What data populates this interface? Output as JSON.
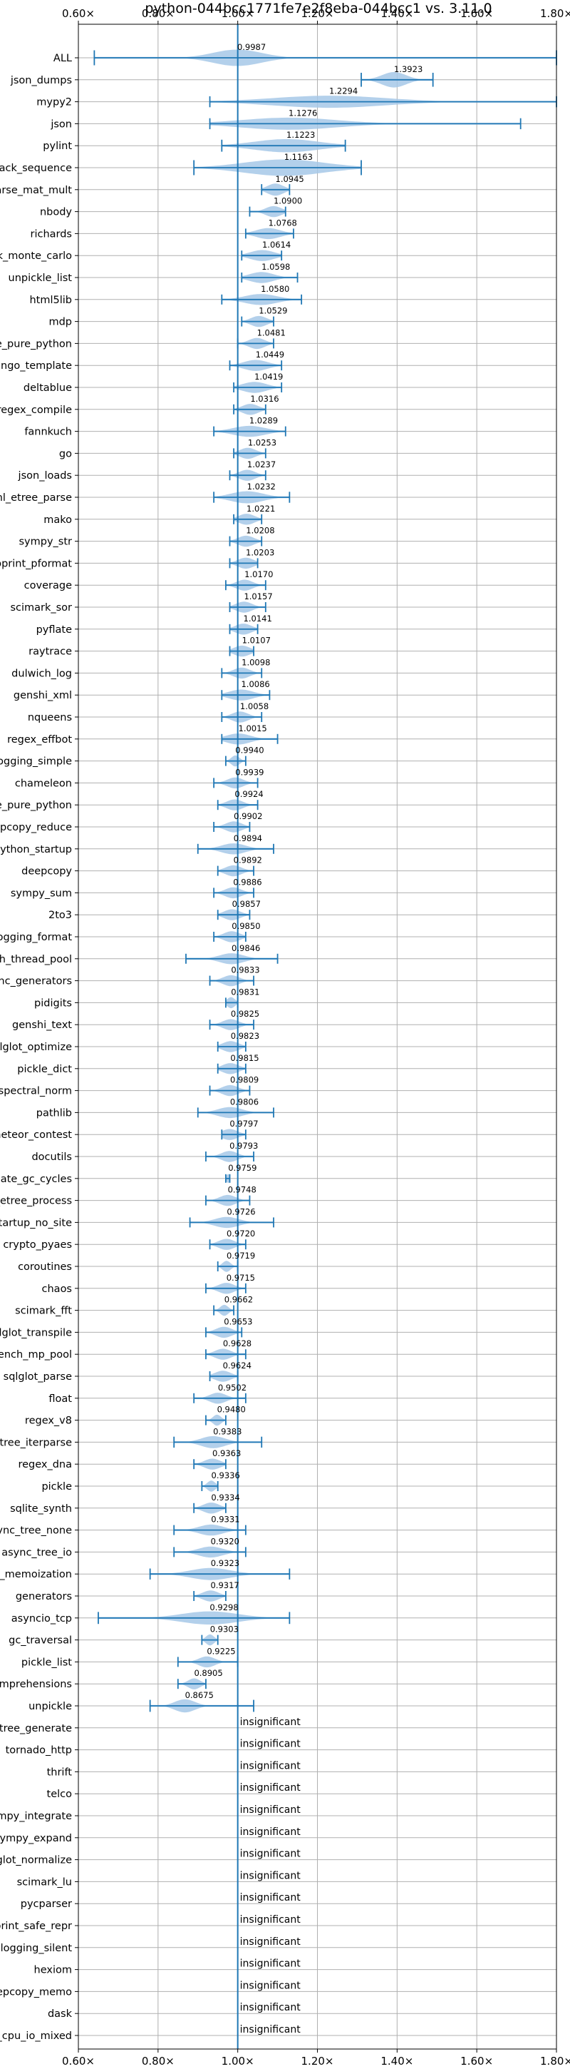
{
  "chart_data": {
    "type": "violin",
    "title": "python-044bcc1771fe7e2f8eba-044bcc1 vs. 3.11.0",
    "xlim": [
      0.6,
      1.8
    ],
    "xticks": [
      0.6,
      0.8,
      1.0,
      1.2,
      1.4,
      1.6,
      1.8
    ],
    "xtick_labels": [
      "0.60×",
      "0.80×",
      "1.00×",
      "1.20×",
      "1.40×",
      "1.60×",
      "1.80×"
    ],
    "reference_line": 1.0,
    "grid": true,
    "colors": {
      "violin": "#a6c8e8",
      "whisker": "#1f77b4",
      "grid": "#b0b0b0"
    },
    "insignificant_text": "insignificant",
    "benchmarks": [
      {
        "name": "ALL",
        "value": 0.9987,
        "min": 0.64,
        "max": 1.8,
        "width": 0.75,
        "spread": 0.06
      },
      {
        "name": "json_dumps",
        "value": 1.3923,
        "min": 1.31,
        "max": 1.49,
        "width": 0.7,
        "spread": 0.03
      },
      {
        "name": "mypy2",
        "value": 1.2294,
        "min": 0.93,
        "max": 1.8,
        "width": 0.55,
        "spread": 0.14
      },
      {
        "name": "json",
        "value": 1.1276,
        "min": 0.93,
        "max": 1.71,
        "width": 0.55,
        "spread": 0.12
      },
      {
        "name": "pylint",
        "value": 1.1223,
        "min": 0.96,
        "max": 1.27,
        "width": 0.6,
        "spread": 0.08
      },
      {
        "name": "unpack_sequence",
        "value": 1.1163,
        "min": 0.89,
        "max": 1.31,
        "width": 0.75,
        "spread": 0.1
      },
      {
        "name": "scimark_sparse_mat_mult",
        "value": 1.0945,
        "min": 1.06,
        "max": 1.13,
        "width": 0.55,
        "spread": 0.02
      },
      {
        "name": "nbody",
        "value": 1.09,
        "min": 1.03,
        "max": 1.12,
        "width": 0.5,
        "spread": 0.02
      },
      {
        "name": "richards",
        "value": 1.0768,
        "min": 1.02,
        "max": 1.14,
        "width": 0.5,
        "spread": 0.03
      },
      {
        "name": "scimark_monte_carlo",
        "value": 1.0614,
        "min": 1.01,
        "max": 1.11,
        "width": 0.5,
        "spread": 0.03
      },
      {
        "name": "unpickle_list",
        "value": 1.0598,
        "min": 1.01,
        "max": 1.15,
        "width": 0.5,
        "spread": 0.03
      },
      {
        "name": "html5lib",
        "value": 1.058,
        "min": 0.96,
        "max": 1.16,
        "width": 0.5,
        "spread": 0.04
      },
      {
        "name": "mdp",
        "value": 1.0529,
        "min": 1.01,
        "max": 1.09,
        "width": 0.5,
        "spread": 0.02
      },
      {
        "name": "unpickle_pure_python",
        "value": 1.0481,
        "min": 1.0,
        "max": 1.09,
        "width": 0.5,
        "spread": 0.02
      },
      {
        "name": "django_template",
        "value": 1.0449,
        "min": 0.98,
        "max": 1.11,
        "width": 0.5,
        "spread": 0.03
      },
      {
        "name": "deltablue",
        "value": 1.0419,
        "min": 0.99,
        "max": 1.11,
        "width": 0.5,
        "spread": 0.03
      },
      {
        "name": "regex_compile",
        "value": 1.0316,
        "min": 0.99,
        "max": 1.07,
        "width": 0.5,
        "spread": 0.02
      },
      {
        "name": "fannkuch",
        "value": 1.0289,
        "min": 0.94,
        "max": 1.12,
        "width": 0.5,
        "spread": 0.04
      },
      {
        "name": "go",
        "value": 1.0253,
        "min": 0.99,
        "max": 1.07,
        "width": 0.5,
        "spread": 0.02
      },
      {
        "name": "json_loads",
        "value": 1.0237,
        "min": 0.98,
        "max": 1.07,
        "width": 0.5,
        "spread": 0.02
      },
      {
        "name": "xml_etree_parse",
        "value": 1.0232,
        "min": 0.94,
        "max": 1.13,
        "width": 0.55,
        "spread": 0.04
      },
      {
        "name": "mako",
        "value": 1.0221,
        "min": 0.99,
        "max": 1.06,
        "width": 0.5,
        "spread": 0.02
      },
      {
        "name": "sympy_str",
        "value": 1.0208,
        "min": 0.98,
        "max": 1.06,
        "width": 0.5,
        "spread": 0.02
      },
      {
        "name": "pprint_pformat",
        "value": 1.0203,
        "min": 0.98,
        "max": 1.05,
        "width": 0.5,
        "spread": 0.02
      },
      {
        "name": "coverage",
        "value": 1.017,
        "min": 0.97,
        "max": 1.07,
        "width": 0.5,
        "spread": 0.02
      },
      {
        "name": "scimark_sor",
        "value": 1.0157,
        "min": 0.98,
        "max": 1.07,
        "width": 0.5,
        "spread": 0.02
      },
      {
        "name": "pyflate",
        "value": 1.0141,
        "min": 0.98,
        "max": 1.05,
        "width": 0.5,
        "spread": 0.02
      },
      {
        "name": "raytrace",
        "value": 1.0107,
        "min": 0.98,
        "max": 1.04,
        "width": 0.5,
        "spread": 0.02
      },
      {
        "name": "dulwich_log",
        "value": 1.0098,
        "min": 0.96,
        "max": 1.06,
        "width": 0.5,
        "spread": 0.02
      },
      {
        "name": "genshi_xml",
        "value": 1.0086,
        "min": 0.96,
        "max": 1.08,
        "width": 0.5,
        "spread": 0.03
      },
      {
        "name": "nqueens",
        "value": 1.0058,
        "min": 0.96,
        "max": 1.06,
        "width": 0.5,
        "spread": 0.02
      },
      {
        "name": "regex_effbot",
        "value": 1.0015,
        "min": 0.96,
        "max": 1.1,
        "width": 0.5,
        "spread": 0.03
      },
      {
        "name": "logging_simple",
        "value": 0.994,
        "min": 0.97,
        "max": 1.02,
        "width": 0.5,
        "spread": 0.01
      },
      {
        "name": "chameleon",
        "value": 0.9939,
        "min": 0.94,
        "max": 1.05,
        "width": 0.5,
        "spread": 0.02
      },
      {
        "name": "pickle_pure_python",
        "value": 0.9924,
        "min": 0.95,
        "max": 1.05,
        "width": 0.5,
        "spread": 0.02
      },
      {
        "name": "deepcopy_reduce",
        "value": 0.9902,
        "min": 0.94,
        "max": 1.03,
        "width": 0.5,
        "spread": 0.02
      },
      {
        "name": "python_startup",
        "value": 0.9894,
        "min": 0.9,
        "max": 1.09,
        "width": 0.5,
        "spread": 0.03
      },
      {
        "name": "deepcopy",
        "value": 0.9892,
        "min": 0.95,
        "max": 1.04,
        "width": 0.5,
        "spread": 0.02
      },
      {
        "name": "sympy_sum",
        "value": 0.9886,
        "min": 0.94,
        "max": 1.04,
        "width": 0.5,
        "spread": 0.02
      },
      {
        "name": "2to3",
        "value": 0.9857,
        "min": 0.95,
        "max": 1.03,
        "width": 0.5,
        "spread": 0.02
      },
      {
        "name": "logging_format",
        "value": 0.985,
        "min": 0.94,
        "max": 1.02,
        "width": 0.5,
        "spread": 0.02
      },
      {
        "name": "bench_thread_pool",
        "value": 0.9846,
        "min": 0.87,
        "max": 1.1,
        "width": 0.5,
        "spread": 0.03
      },
      {
        "name": "async_generators",
        "value": 0.9833,
        "min": 0.93,
        "max": 1.04,
        "width": 0.5,
        "spread": 0.02
      },
      {
        "name": "pidigits",
        "value": 0.9831,
        "min": 0.97,
        "max": 1.0,
        "width": 0.5,
        "spread": 0.01
      },
      {
        "name": "genshi_text",
        "value": 0.9825,
        "min": 0.93,
        "max": 1.04,
        "width": 0.5,
        "spread": 0.02
      },
      {
        "name": "sqlglot_optimize",
        "value": 0.9823,
        "min": 0.95,
        "max": 1.02,
        "width": 0.5,
        "spread": 0.02
      },
      {
        "name": "pickle_dict",
        "value": 0.9815,
        "min": 0.95,
        "max": 1.02,
        "width": 0.5,
        "spread": 0.02
      },
      {
        "name": "spectral_norm",
        "value": 0.9809,
        "min": 0.93,
        "max": 1.03,
        "width": 0.5,
        "spread": 0.02
      },
      {
        "name": "pathlib",
        "value": 0.9806,
        "min": 0.9,
        "max": 1.09,
        "width": 0.5,
        "spread": 0.03
      },
      {
        "name": "meteor_contest",
        "value": 0.9797,
        "min": 0.96,
        "max": 1.02,
        "width": 0.5,
        "spread": 0.02
      },
      {
        "name": "docutils",
        "value": 0.9793,
        "min": 0.92,
        "max": 1.04,
        "width": 0.5,
        "spread": 0.02
      },
      {
        "name": "create_gc_cycles",
        "value": 0.9759,
        "min": 0.97,
        "max": 0.98,
        "width": 0.4,
        "spread": 0.005
      },
      {
        "name": "xml_etree_process",
        "value": 0.9748,
        "min": 0.92,
        "max": 1.03,
        "width": 0.5,
        "spread": 0.02
      },
      {
        "name": "python_startup_no_site",
        "value": 0.9726,
        "min": 0.88,
        "max": 1.09,
        "width": 0.5,
        "spread": 0.03
      },
      {
        "name": "crypto_pyaes",
        "value": 0.972,
        "min": 0.93,
        "max": 1.02,
        "width": 0.5,
        "spread": 0.02
      },
      {
        "name": "coroutines",
        "value": 0.9719,
        "min": 0.95,
        "max": 1.0,
        "width": 0.5,
        "spread": 0.01
      },
      {
        "name": "chaos",
        "value": 0.9715,
        "min": 0.92,
        "max": 1.02,
        "width": 0.5,
        "spread": 0.02
      },
      {
        "name": "scimark_fft",
        "value": 0.9662,
        "min": 0.94,
        "max": 0.99,
        "width": 0.5,
        "spread": 0.01
      },
      {
        "name": "sqlglot_transpile",
        "value": 0.9653,
        "min": 0.92,
        "max": 1.01,
        "width": 0.5,
        "spread": 0.02
      },
      {
        "name": "bench_mp_pool",
        "value": 0.9628,
        "min": 0.92,
        "max": 1.02,
        "width": 0.5,
        "spread": 0.02
      },
      {
        "name": "sqlglot_parse",
        "value": 0.9624,
        "min": 0.93,
        "max": 1.0,
        "width": 0.5,
        "spread": 0.02
      },
      {
        "name": "float",
        "value": 0.9502,
        "min": 0.89,
        "max": 1.02,
        "width": 0.5,
        "spread": 0.02
      },
      {
        "name": "regex_v8",
        "value": 0.948,
        "min": 0.92,
        "max": 0.97,
        "width": 0.5,
        "spread": 0.01
      },
      {
        "name": "xml_etree_iterparse",
        "value": 0.9383,
        "min": 0.84,
        "max": 1.06,
        "width": 0.55,
        "spread": 0.03
      },
      {
        "name": "regex_dna",
        "value": 0.9363,
        "min": 0.89,
        "max": 0.97,
        "width": 0.5,
        "spread": 0.02
      },
      {
        "name": "pickle",
        "value": 0.9336,
        "min": 0.91,
        "max": 0.95,
        "width": 0.5,
        "spread": 0.01
      },
      {
        "name": "sqlite_synth",
        "value": 0.9334,
        "min": 0.89,
        "max": 0.97,
        "width": 0.5,
        "spread": 0.02
      },
      {
        "name": "async_tree_none",
        "value": 0.9331,
        "min": 0.84,
        "max": 1.02,
        "width": 0.5,
        "spread": 0.03
      },
      {
        "name": "async_tree_io",
        "value": 0.932,
        "min": 0.84,
        "max": 1.02,
        "width": 0.5,
        "spread": 0.03
      },
      {
        "name": "async_tree_memoization",
        "value": 0.9323,
        "min": 0.78,
        "max": 1.13,
        "width": 0.55,
        "spread": 0.05
      },
      {
        "name": "generators",
        "value": 0.9317,
        "min": 0.89,
        "max": 0.97,
        "width": 0.5,
        "spread": 0.02
      },
      {
        "name": "asyncio_tcp",
        "value": 0.9298,
        "min": 0.65,
        "max": 1.13,
        "width": 0.6,
        "spread": 0.07
      },
      {
        "name": "gc_traversal",
        "value": 0.9303,
        "min": 0.91,
        "max": 0.95,
        "width": 0.5,
        "spread": 0.01
      },
      {
        "name": "pickle_list",
        "value": 0.9225,
        "min": 0.85,
        "max": 1.0,
        "width": 0.5,
        "spread": 0.02
      },
      {
        "name": "comprehensions",
        "value": 0.8905,
        "min": 0.85,
        "max": 0.92,
        "width": 0.5,
        "spread": 0.015
      },
      {
        "name": "unpickle",
        "value": 0.8675,
        "min": 0.78,
        "max": 1.04,
        "width": 0.6,
        "spread": 0.025
      },
      {
        "name": "xml_etree_generate",
        "insignificant": true
      },
      {
        "name": "tornado_http",
        "insignificant": true
      },
      {
        "name": "thrift",
        "insignificant": true
      },
      {
        "name": "telco",
        "insignificant": true
      },
      {
        "name": "sympy_integrate",
        "insignificant": true
      },
      {
        "name": "sympy_expand",
        "insignificant": true
      },
      {
        "name": "sqlglot_normalize",
        "insignificant": true
      },
      {
        "name": "scimark_lu",
        "insignificant": true
      },
      {
        "name": "pycparser",
        "insignificant": true
      },
      {
        "name": "pprint_safe_repr",
        "insignificant": true
      },
      {
        "name": "logging_silent",
        "insignificant": true
      },
      {
        "name": "hexiom",
        "insignificant": true
      },
      {
        "name": "deepcopy_memo",
        "insignificant": true
      },
      {
        "name": "dask",
        "insignificant": true
      },
      {
        "name": "async_tree_cpu_io_mixed",
        "insignificant": true
      }
    ]
  }
}
